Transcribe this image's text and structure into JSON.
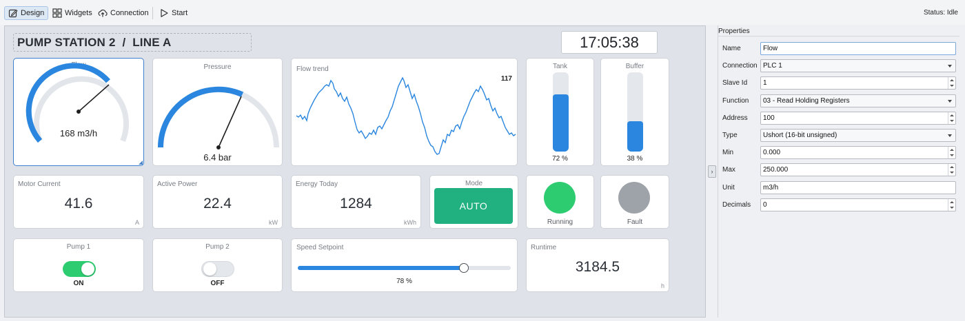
{
  "toolbar": {
    "design_label": "Design",
    "widgets_label": "Widgets",
    "connection_label": "Connection",
    "start_label": "Start",
    "status_text": "Status: Idle"
  },
  "dashboard": {
    "title": "PUMP STATION 2  /  LINE A",
    "clock": "17:05:38",
    "flow": {
      "title": "Flow",
      "value_text": "168 m3/h",
      "value": 168,
      "max": 250
    },
    "pressure": {
      "title": "Pressure",
      "value_text": "6.4 bar",
      "value": 6.4
    },
    "flow_trend": {
      "title": "Flow trend",
      "last_value": "117"
    },
    "tank": {
      "title": "Tank",
      "percent_text": "72 %",
      "level": 0.72
    },
    "buffer": {
      "title": "Buffer",
      "percent_text": "38 %",
      "level": 0.38
    },
    "motor_current": {
      "title": "Motor Current",
      "value": "41.6",
      "unit": "A"
    },
    "active_power": {
      "title": "Active Power",
      "value": "22.4",
      "unit": "kW"
    },
    "energy_today": {
      "title": "Energy Today",
      "value": "1284",
      "unit": "kWh"
    },
    "mode": {
      "title": "Mode",
      "button_label": "AUTO"
    },
    "running": {
      "label": "Running",
      "color": "#2ecc71"
    },
    "fault": {
      "label": "Fault",
      "color": "#9ea3a9"
    },
    "pump1": {
      "title": "Pump 1",
      "state": "ON",
      "on": true
    },
    "pump2": {
      "title": "Pump 2",
      "state": "OFF",
      "on": false
    },
    "speed_setpoint": {
      "title": "Speed Setpoint",
      "percent_text": "78 %",
      "level": 0.78
    },
    "runtime": {
      "title": "Runtime",
      "value": "3184.5",
      "unit": "h"
    }
  },
  "properties": {
    "title": "Properties",
    "rows": [
      {
        "label": "Name",
        "value": "Flow",
        "kind": "text"
      },
      {
        "label": "Connection",
        "value": "PLC 1",
        "kind": "combo"
      },
      {
        "label": "Slave Id",
        "value": "1",
        "kind": "spin"
      },
      {
        "label": "Function",
        "value": "03 - Read Holding Registers",
        "kind": "combo"
      },
      {
        "label": "Address",
        "value": "100",
        "kind": "spin"
      },
      {
        "label": "Type",
        "value": "Ushort (16-bit unsigned)",
        "kind": "combo"
      },
      {
        "label": "Min",
        "value": "0.000",
        "kind": "spin"
      },
      {
        "label": "Max",
        "value": "250.000",
        "kind": "spin"
      },
      {
        "label": "Unit",
        "value": "m3/h",
        "kind": "text"
      },
      {
        "label": "Decimals",
        "value": "0",
        "kind": "spin"
      }
    ]
  },
  "colors": {
    "accent": "#2a86de",
    "mode_green": "#21b07f",
    "toggle_on": "#2ecc71",
    "toggle_off": "#e4e7eb"
  }
}
